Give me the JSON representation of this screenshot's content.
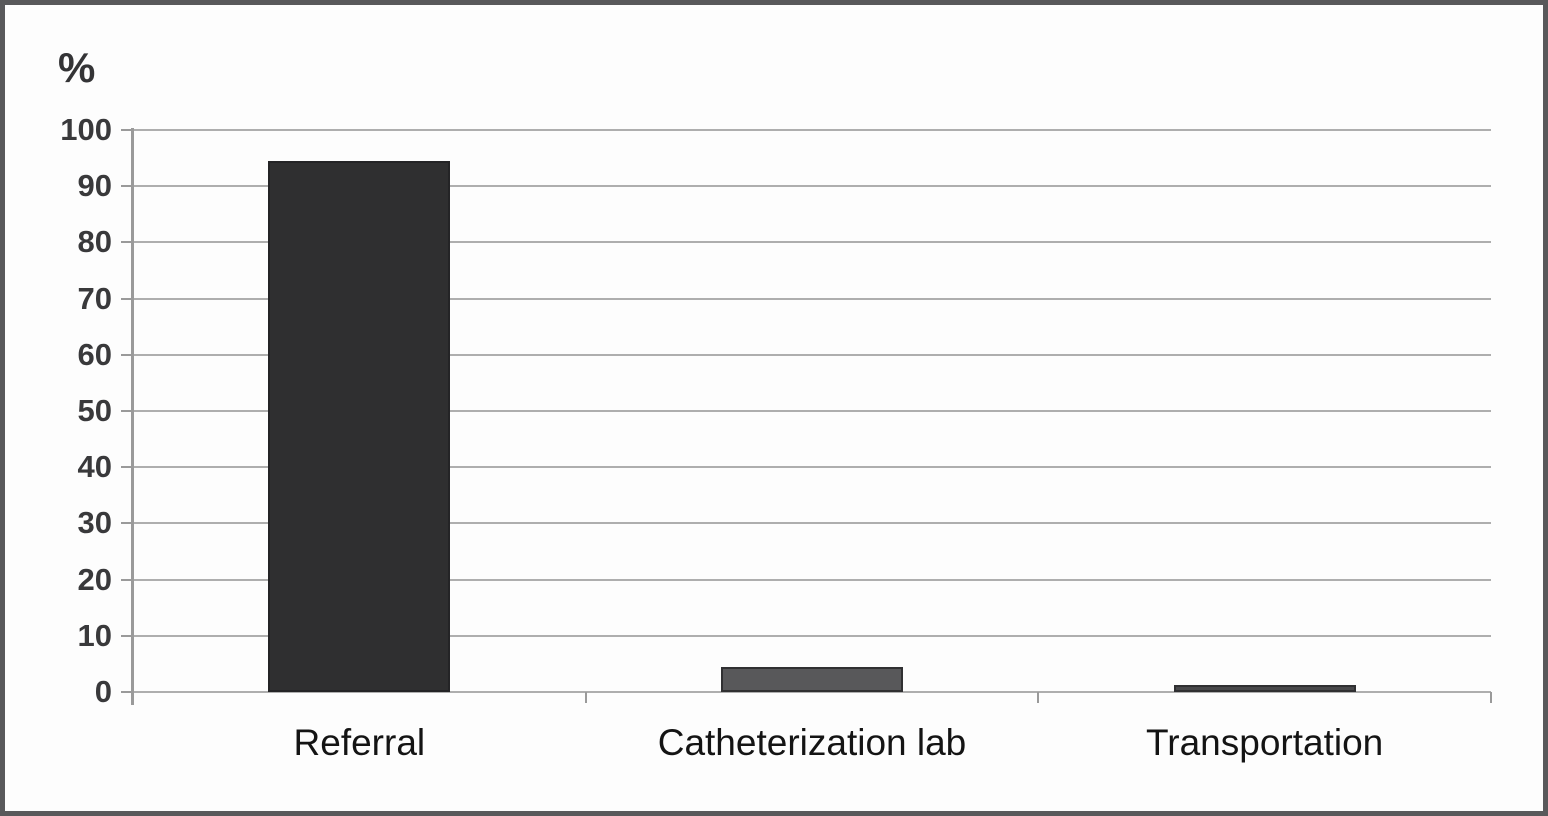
{
  "frame": {
    "background": "#fdfdfd",
    "border_color": "#59595b"
  },
  "chart_data": {
    "type": "bar",
    "title": "",
    "xlabel": "",
    "ylabel": "%",
    "categories": [
      "Referral",
      "Catheterization lab",
      "Transportation"
    ],
    "values": [
      94.5,
      4.5,
      1.2
    ],
    "bar_colors": [
      "#2f2f30",
      "#58585a",
      "#48484a"
    ],
    "bar_border_colors": [
      "#242426",
      "#303032",
      "#303032"
    ],
    "ylim": [
      0,
      100
    ],
    "yticks": [
      0,
      10,
      20,
      30,
      40,
      50,
      60,
      70,
      80,
      90,
      100
    ],
    "grid": "horizontal",
    "legend": "none",
    "gridline_color": "#aeaeae",
    "axis_color": "#9a9a9a",
    "tick_label_color": "#39393b",
    "category_label_color": "#141414"
  }
}
